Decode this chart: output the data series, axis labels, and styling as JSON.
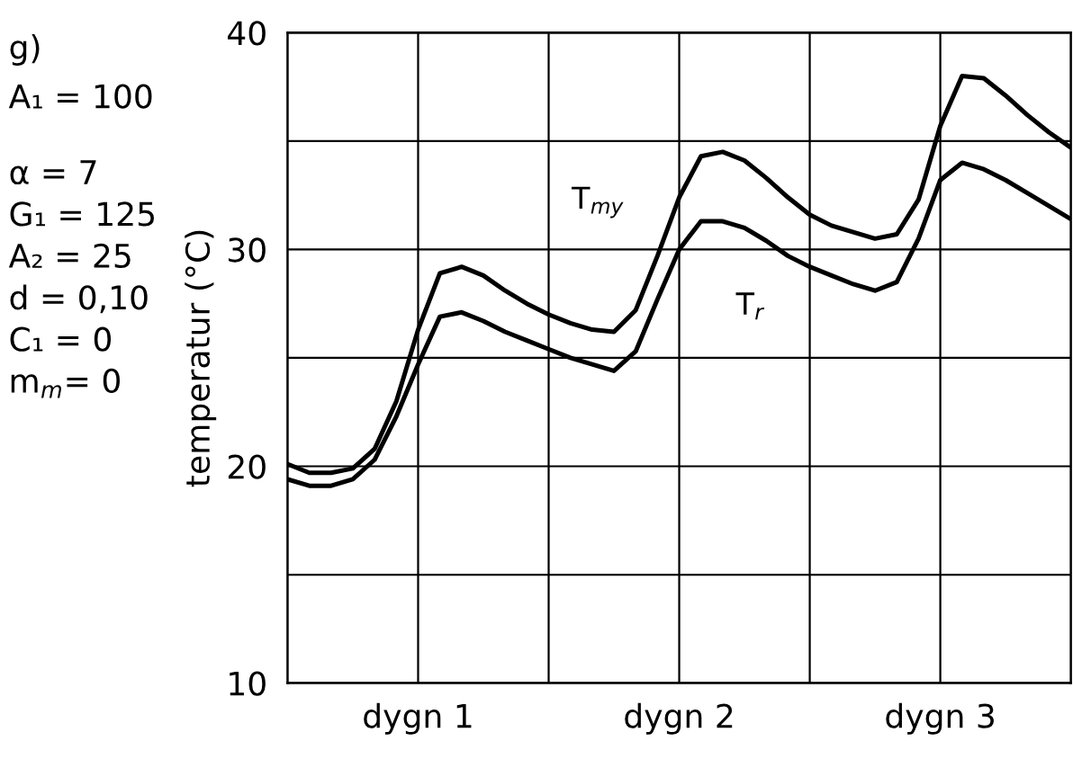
{
  "chart_data": {
    "type": "line",
    "ylabel": "temperatur (°C)",
    "categories": [
      null,
      null,
      null,
      null,
      null,
      null,
      "dygn 1",
      null,
      null,
      null,
      null,
      null,
      null,
      null,
      null,
      null,
      null,
      null,
      "dygn 2",
      null,
      null,
      null,
      null,
      null,
      null,
      null,
      null,
      null,
      null,
      null,
      "dygn 3",
      null,
      null,
      null,
      null,
      null,
      null
    ],
    "ylim": [
      10,
      40
    ],
    "yticks": [
      10,
      {
        "value": 15,
        "label": null
      },
      20,
      {
        "value": 25,
        "label": null
      },
      30,
      {
        "value": 35,
        "label": null
      },
      40
    ],
    "grid": true,
    "marker": "none",
    "line_style": "solid",
    "series": [
      {
        "name": "T$_{my}$",
        "color": "#000000",
        "values": [
          20.1,
          19.7,
          19.7,
          19.9,
          20.8,
          23.0,
          26.3,
          28.9,
          29.2,
          28.8,
          28.1,
          27.5,
          27.0,
          26.6,
          26.3,
          26.2,
          27.2,
          29.7,
          32.4,
          34.3,
          34.5,
          34.1,
          33.3,
          32.4,
          31.6,
          31.1,
          30.8,
          30.5,
          30.7,
          32.3,
          35.7,
          38.0,
          37.9,
          37.1,
          36.2,
          35.4,
          34.7
        ]
      },
      {
        "name": "T$_{r}$",
        "color": "#000000",
        "values": [
          19.4,
          19.1,
          19.1,
          19.4,
          20.3,
          22.3,
          24.7,
          26.9,
          27.1,
          26.7,
          26.2,
          25.8,
          25.4,
          25.0,
          24.7,
          24.4,
          25.3,
          27.7,
          30.0,
          31.3,
          31.3,
          31.0,
          30.4,
          29.7,
          29.2,
          28.8,
          28.4,
          28.1,
          28.5,
          30.5,
          33.2,
          34.0,
          33.7,
          33.2,
          32.6,
          32.0,
          31.4
        ]
      }
    ],
    "annotations": [
      "g)",
      "A₁ = 100",
      "α = 7",
      "G₁ = 125",
      "A₂ = 25",
      "d = 0,10",
      "C₁ = 0",
      "m$_{m}$= 0"
    ]
  }
}
